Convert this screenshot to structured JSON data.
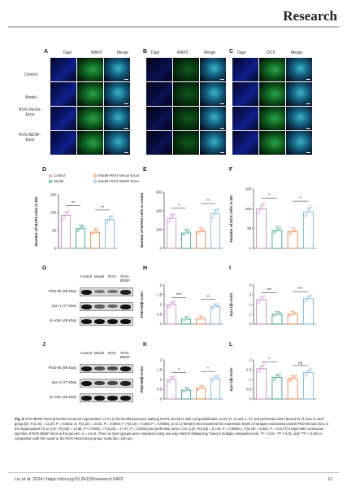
{
  "header": {
    "journal": "Research"
  },
  "microscopy": {
    "panels": [
      "A",
      "B",
      "C"
    ],
    "columns": {
      "A": [
        "Dapi",
        "MAP2",
        "Merge"
      ],
      "B": [
        "Dapi",
        "MAP2",
        "Merge"
      ],
      "C": [
        "Dapi",
        "DCX",
        "Merge"
      ]
    },
    "rows": [
      "Control",
      "Model",
      "RVG-Vector-Exos",
      "RVG-BDNF-Exos"
    ]
  },
  "legend": {
    "items": [
      "Control",
      "Model+RVG-Vector-Exos",
      "Model",
      "Model+RVG-BDNF-Exos"
    ],
    "colors": {
      "control": "#c98fc9",
      "model": "#3aa58a",
      "vector": "#e8894a",
      "bdnf": "#7cb7d9"
    }
  },
  "blots": {
    "G": {
      "columns": [
        "Control",
        "Model",
        "RVG",
        "RVG-\nBDNF"
      ],
      "rows": [
        "PSD-95 (95 kDa)",
        "Syn-1 (77 kDa)",
        "β-Actin (45 kDa)"
      ]
    },
    "J": {
      "columns": [
        "Control",
        "Model",
        "RVG",
        "RVG-\nBDNF"
      ],
      "rows": [
        "PSD-95 (95 kDa)",
        "Syn-1 (77 kDa)",
        "β-Actin (45 kDa)"
      ]
    }
  },
  "chart_data": [
    {
      "panel": "D",
      "type": "bar",
      "ylabel": "Number of MAP2 cells in DG",
      "ylim": [
        0,
        150
      ],
      "yticks": [
        0,
        50,
        100,
        150
      ],
      "values": [
        92,
        55,
        45,
        80
      ],
      "sig": [
        {
          "pair": [
            0,
            1
          ],
          "text": "**"
        },
        {
          "pair": [
            2,
            3
          ],
          "text": "**"
        }
      ]
    },
    {
      "panel": "E",
      "type": "bar",
      "ylabel": "Number of MAP2 cells in cortex",
      "ylim": [
        0,
        300
      ],
      "yticks": [
        0,
        100,
        200,
        300
      ],
      "values": [
        160,
        82,
        90,
        185
      ],
      "sig": [
        {
          "pair": [
            0,
            1
          ],
          "text": "*"
        },
        {
          "pair": [
            2,
            3
          ],
          "text": "**"
        }
      ]
    },
    {
      "panel": "F",
      "type": "bar",
      "ylabel": "Number of DCX cells in DG",
      "ylim": [
        0,
        150
      ],
      "yticks": [
        0,
        50,
        100,
        150
      ],
      "values": [
        100,
        45,
        42,
        92
      ],
      "sig": [
        {
          "pair": [
            0,
            1
          ],
          "text": "*"
        },
        {
          "pair": [
            2,
            3
          ],
          "text": "*"
        }
      ]
    },
    {
      "panel": "H",
      "type": "bar",
      "ylabel": "PSD-95/β-Actin",
      "ylim": [
        0,
        2.0
      ],
      "yticks": [
        0,
        0.5,
        1.0,
        1.5,
        2.0
      ],
      "values": [
        1.0,
        0.25,
        0.28,
        0.9
      ],
      "sig": [
        {
          "pair": [
            0,
            1
          ],
          "text": "***"
        },
        {
          "pair": [
            2,
            3
          ],
          "text": "**"
        }
      ]
    },
    {
      "panel": "I",
      "type": "bar",
      "ylabel": "Syn-1/β-Actin",
      "ylim": [
        0,
        4
      ],
      "yticks": [
        0,
        1,
        2,
        3,
        4
      ],
      "values": [
        2.5,
        1.0,
        1.0,
        2.6
      ],
      "sig": [
        {
          "pair": [
            0,
            1
          ],
          "text": "***"
        },
        {
          "pair": [
            2,
            3
          ],
          "text": "***"
        }
      ]
    },
    {
      "panel": "K",
      "type": "bar",
      "ylabel": "PSD-95/β-Actin",
      "ylim": [
        0,
        2.0
      ],
      "yticks": [
        0,
        0.5,
        1.0,
        1.5,
        2.0
      ],
      "values": [
        1.0,
        0.45,
        0.55,
        1.05
      ],
      "sig": [
        {
          "pair": [
            0,
            1
          ],
          "text": "*"
        },
        {
          "pair": [
            2,
            3
          ],
          "text": "*"
        }
      ]
    },
    {
      "panel": "L",
      "type": "bar",
      "ylabel": "Syn-1/β-Actin",
      "ylim": [
        0,
        2.0
      ],
      "yticks": [
        0,
        0.5,
        1.0,
        1.5,
        2.0
      ],
      "values": [
        1.55,
        1.1,
        1.05,
        1.35
      ],
      "sig": [
        {
          "pair": [
            0,
            1
          ],
          "text": "*"
        },
        {
          "pair": [
            2,
            3
          ],
          "text": "ns"
        }
      ]
    }
  ],
  "caption": {
    "fig_label": "Fig. 8.",
    "text": "RVG-BDNF-Exos promoted neuronal regeneration. (A to J) Immunofluorescence staining MAP2 and DCX with cell quantification in DG (A, D and C, F), and prefrontal cortex (B and E) of mice in each group [(D: F(3,16) = 12.20, P = 0.0002; E: F(3,16) = 10.63, P = 0.0004; F: F(3,16) = 9.286, P = 0.0009]. (G to L) Western blot examined the expression levels of synapse-associated protein PSD-95 and Syn1 in the hippocampus (G to I) [H: F(3,20) = 13.88, P < 0.0001; I: F(3,20) = 17.07, P = 0.0004] and prefrontal cortex (J to L) [K: F(3,20) = 5.743, P = 0.0053; L: F(3,20) = 5.002, P = 0.0177] 3 days after continuous injection of RVG-BDNF-Exos in the tail vein. n = 4 to 6. Three or more groups were compared using one-way ANOVA followed by Tukey’s multiple comparison test. *P < 0.05, **P < 0.01, and ***P < 0.001 in comparison with the model or the RVG-Vector-Exos group; scale bar =100 μm."
  },
  "footer": {
    "citation": "Liu et al. 2024 | https://doi.org/10.34133/research.0402",
    "page": "11"
  }
}
